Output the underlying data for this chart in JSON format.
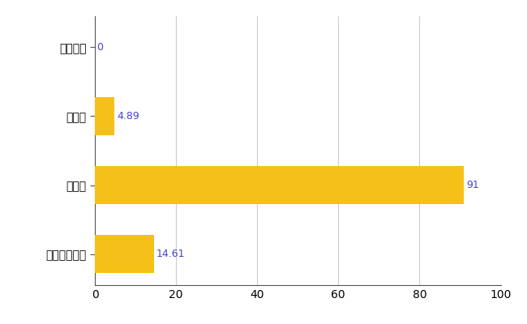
{
  "categories": [
    "ひたちなか市",
    "県平均",
    "県最大",
    "全国平均"
  ],
  "values": [
    0,
    4.89,
    91,
    14.61
  ],
  "bar_color": "#F5C118",
  "xlim": [
    0,
    100
  ],
  "xticks": [
    0,
    20,
    40,
    60,
    80,
    100
  ],
  "bar_height": 0.55,
  "label_fontsize": 10,
  "tick_fontsize": 10,
  "grid_color": "#cccccc",
  "background_color": "#ffffff",
  "value_labels": [
    "0",
    "4.89",
    "91",
    "14.61"
  ],
  "value_color": "#4444cc"
}
